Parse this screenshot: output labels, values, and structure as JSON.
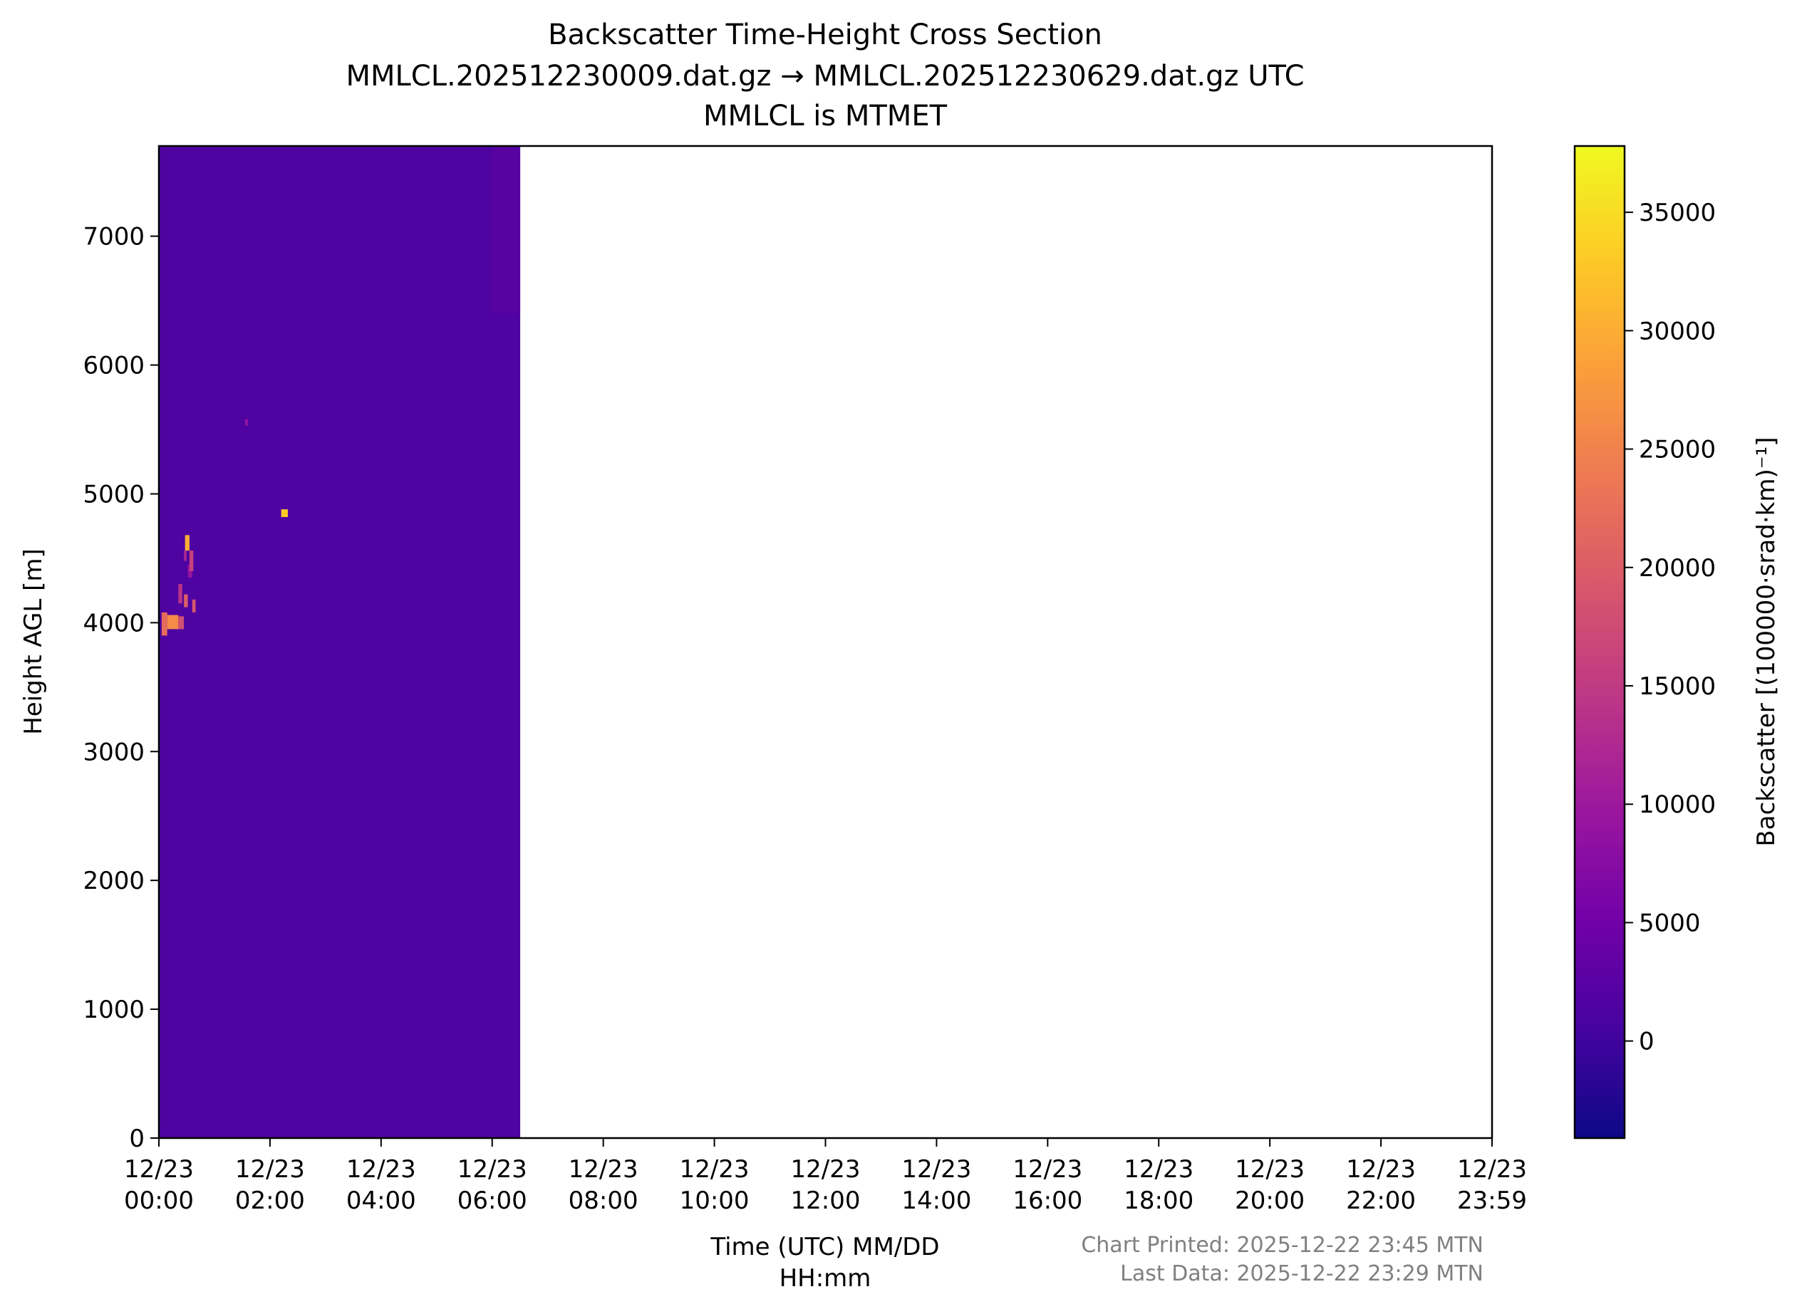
{
  "chart_data": {
    "type": "heatmap",
    "title_lines": [
      "Backscatter Time-Height Cross Section",
      "MMLCL.202512230009.dat.gz → MMLCL.202512230629.dat.gz UTC",
      "MMLCL is MTMET"
    ],
    "xlabel_lines": [
      "Time (UTC) MM/DD",
      "HH:mm"
    ],
    "ylabel": "Height AGL [m]",
    "x_ticks": [
      [
        "12/23",
        "00:00"
      ],
      [
        "12/23",
        "02:00"
      ],
      [
        "12/23",
        "04:00"
      ],
      [
        "12/23",
        "06:00"
      ],
      [
        "12/23",
        "08:00"
      ],
      [
        "12/23",
        "10:00"
      ],
      [
        "12/23",
        "12:00"
      ],
      [
        "12/23",
        "14:00"
      ],
      [
        "12/23",
        "16:00"
      ],
      [
        "12/23",
        "18:00"
      ],
      [
        "12/23",
        "20:00"
      ],
      [
        "12/23",
        "22:00"
      ],
      [
        "12/23",
        "23:59"
      ]
    ],
    "x_range_hours": [
      0,
      23.983
    ],
    "data_time_range_hours": [
      0,
      6.5
    ],
    "y_ticks": [
      0,
      1000,
      2000,
      3000,
      4000,
      5000,
      6000,
      7000
    ],
    "ylim": [
      0,
      7700
    ],
    "colorbar": {
      "label": "Backscatter [(100000·srad·km)⁻¹]",
      "ticks": [
        0,
        5000,
        10000,
        15000,
        20000,
        25000,
        30000,
        35000
      ],
      "range": [
        -4100,
        37800
      ],
      "colormap": "plasma",
      "colormap_stops": [
        "#0d0887",
        "#46039f",
        "#7201a8",
        "#9c179e",
        "#bd3786",
        "#d8576b",
        "#ed7953",
        "#fb9f3a",
        "#fdca26",
        "#f0f921"
      ]
    },
    "background_value": 1500,
    "features": [
      {
        "t0": 0.05,
        "t1": 0.15,
        "h0": 3900,
        "h1": 4080,
        "value": 22000
      },
      {
        "t0": 0.15,
        "t1": 0.35,
        "h0": 3950,
        "h1": 4060,
        "value": 26000
      },
      {
        "t0": 0.35,
        "t1": 0.45,
        "h0": 3950,
        "h1": 4050,
        "value": 18000
      },
      {
        "t0": 0.35,
        "t1": 0.42,
        "h0": 4150,
        "h1": 4300,
        "value": 14000
      },
      {
        "t0": 0.45,
        "t1": 0.52,
        "h0": 4120,
        "h1": 4220,
        "value": 20000
      },
      {
        "t0": 0.52,
        "t1": 0.6,
        "h0": 4350,
        "h1": 4450,
        "value": 9000
      },
      {
        "t0": 0.45,
        "t1": 0.5,
        "h0": 4480,
        "h1": 4560,
        "value": 12000
      },
      {
        "t0": 0.47,
        "t1": 0.55,
        "h0": 4560,
        "h1": 4680,
        "value": 30000
      },
      {
        "t0": 0.55,
        "t1": 0.62,
        "h0": 4400,
        "h1": 4560,
        "value": 16000
      },
      {
        "t0": 0.6,
        "t1": 0.66,
        "h0": 4080,
        "h1": 4180,
        "value": 19000
      },
      {
        "t0": 2.2,
        "t1": 2.32,
        "h0": 4820,
        "h1": 4880,
        "value": 33000
      },
      {
        "t0": 1.55,
        "t1": 1.6,
        "h0": 5530,
        "h1": 5580,
        "value": 9000
      },
      {
        "t0": 6.0,
        "t1": 6.5,
        "h0": 6400,
        "h1": 7700,
        "value": 4000
      }
    ],
    "footer": {
      "chart_printed": "Chart Printed: 2025-12-22 23:45 MTN",
      "last_data": "Last Data: 2025-12-22 23:29 MTN"
    }
  }
}
